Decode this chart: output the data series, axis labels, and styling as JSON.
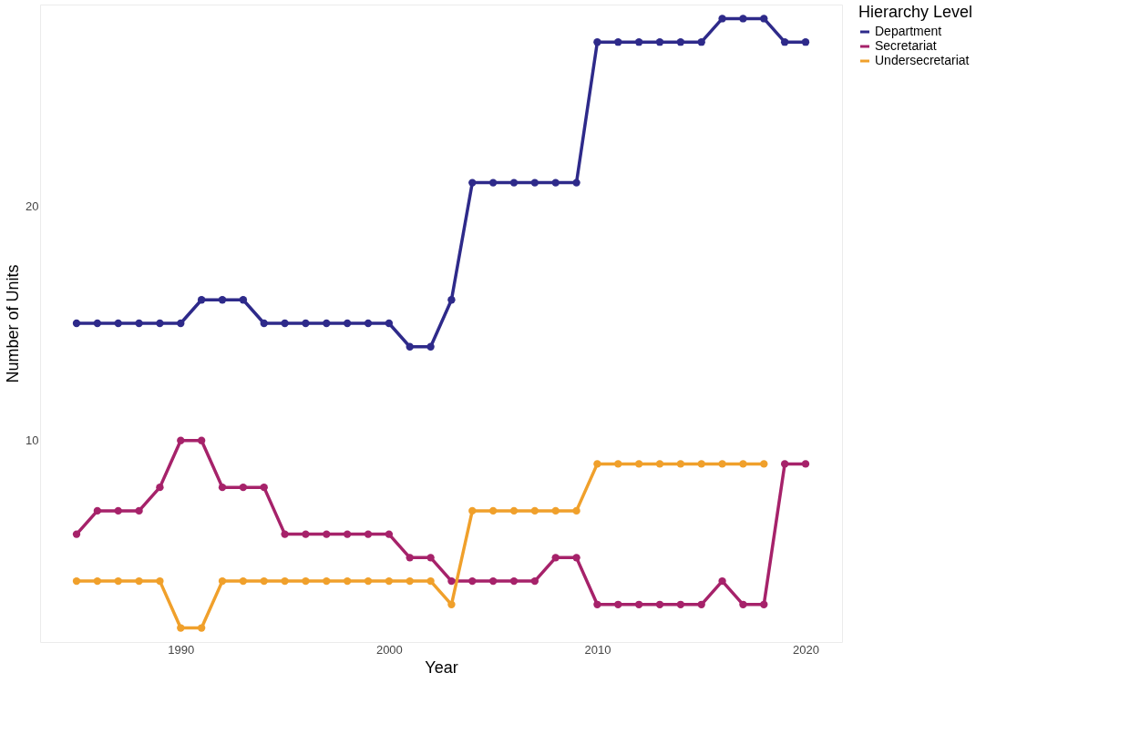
{
  "chart_data": {
    "type": "line",
    "xlabel": "Year",
    "ylabel": "Number of Units",
    "legend_title": "Hierarchy Level",
    "x": [
      1985,
      1986,
      1987,
      1988,
      1989,
      1990,
      1991,
      1992,
      1993,
      1994,
      1995,
      1996,
      1997,
      1998,
      1999,
      2000,
      2001,
      2002,
      2003,
      2004,
      2005,
      2006,
      2007,
      2008,
      2009,
      2010,
      2011,
      2012,
      2013,
      2014,
      2015,
      2016,
      2017,
      2018,
      2019,
      2020
    ],
    "series": [
      {
        "name": "Department",
        "color": "#2e2a8a",
        "values": [
          15,
          15,
          15,
          15,
          15,
          15,
          16,
          16,
          16,
          15,
          15,
          15,
          15,
          15,
          15,
          15,
          14,
          14,
          16,
          21,
          21,
          21,
          21,
          21,
          21,
          27,
          27,
          27,
          27,
          27,
          27,
          28,
          28,
          28,
          27,
          27
        ]
      },
      {
        "name": "Secretariat",
        "color": "#a6226a",
        "values": [
          6,
          7,
          7,
          7,
          8,
          10,
          10,
          8,
          8,
          8,
          6,
          6,
          6,
          6,
          6,
          6,
          5,
          5,
          4,
          4,
          4,
          4,
          4,
          5,
          5,
          3,
          3,
          3,
          3,
          3,
          3,
          4,
          3,
          3,
          9,
          9
        ]
      },
      {
        "name": "Undersecretariat",
        "color": "#f0a02b",
        "values": [
          4,
          4,
          4,
          4,
          4,
          2,
          2,
          4,
          4,
          4,
          4,
          4,
          4,
          4,
          4,
          4,
          4,
          4,
          3,
          7,
          7,
          7,
          7,
          7,
          7,
          9,
          9,
          9,
          9,
          9,
          9,
          9,
          9,
          9,
          null,
          null
        ]
      }
    ],
    "xlim": [
      1983.25,
      2021.75
    ],
    "xticks": [
      1990,
      2000,
      2010,
      2020
    ],
    "ylim": [
      1.4,
      28.6
    ],
    "yticks": [
      10,
      20
    ],
    "grid": false,
    "legend": "right",
    "marker": "circle",
    "line_style": "solid"
  }
}
